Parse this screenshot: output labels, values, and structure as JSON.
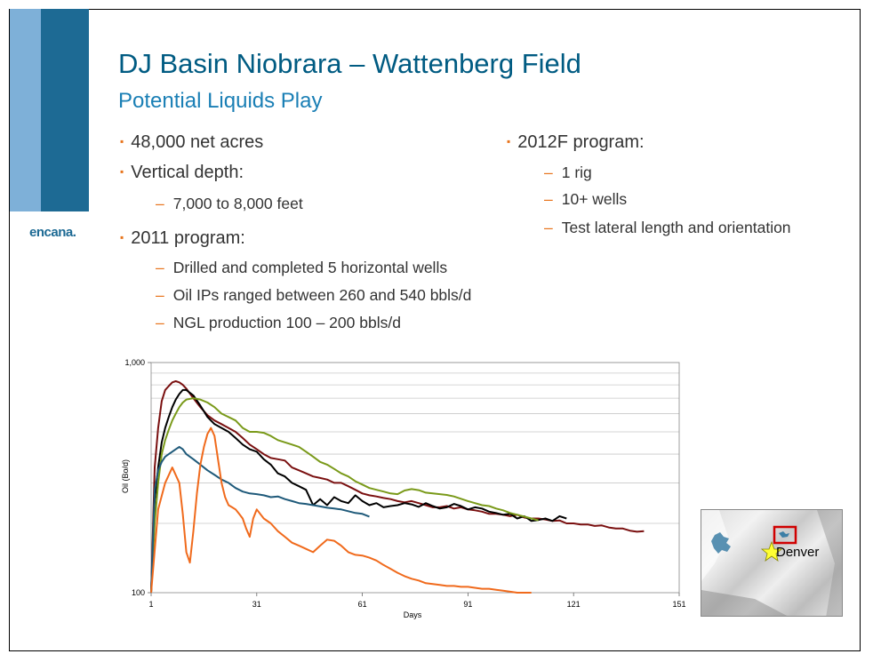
{
  "slide": {
    "title": "DJ Basin Niobrara – Wattenberg Field",
    "subtitle": "Potential Liquids Play",
    "logo": "encana.",
    "colors": {
      "title": "#005b82",
      "subtitle": "#1a7fb5",
      "bar_dark": "#1d6a94",
      "bar_light": "#7eb0d8",
      "bullet": "#e8741c"
    }
  },
  "bullets_left": [
    {
      "text": "48,000 net acres",
      "subs": []
    },
    {
      "text": "Vertical depth:",
      "subs": [
        "7,000 to 8,000 feet"
      ]
    },
    {
      "text": "2011 program:",
      "subs": [
        "Drilled and completed 5 horizontal wells",
        "Oil IPs ranged between 260 and 540 bbls/d",
        "NGL production 100 – 200 bbls/d"
      ]
    }
  ],
  "bullets_right": [
    {
      "text": "2012F program:",
      "subs": [
        "1 rig",
        "10+ wells",
        "Test lateral length and orientation"
      ]
    }
  ],
  "map": {
    "label": "Denver",
    "star_icon": "star-icon"
  },
  "chart_data": {
    "type": "line",
    "xlabel": "Days",
    "ylabel": "Oil (Bo/d)",
    "xlim": [
      1,
      151
    ],
    "ylim": [
      100,
      1000
    ],
    "yscale": "log",
    "x_ticks": [
      1,
      31,
      61,
      91,
      121,
      151
    ],
    "y_tick_labels": [
      "100",
      "1,000"
    ],
    "grid": true,
    "series": [
      {
        "color": "#7a1010",
        "x": [
          1,
          2,
          3,
          4,
          5,
          6,
          7,
          8,
          9,
          10,
          11,
          13,
          15,
          17,
          19,
          21,
          23,
          25,
          27,
          29,
          31,
          33,
          35,
          37,
          39,
          41,
          43,
          45,
          47,
          49,
          51,
          53,
          55,
          57,
          59,
          61,
          63,
          65,
          67,
          69,
          71,
          73,
          75,
          77,
          79,
          81,
          83,
          85,
          87,
          89,
          91,
          93,
          95,
          97,
          99,
          101,
          103,
          105,
          107,
          109,
          111,
          113,
          115,
          117,
          119,
          121,
          123,
          125,
          127,
          129,
          131,
          133,
          135,
          137,
          139,
          141
        ],
        "y": [
          100,
          350,
          520,
          680,
          760,
          790,
          820,
          830,
          820,
          800,
          770,
          700,
          640,
          590,
          560,
          540,
          520,
          500,
          470,
          440,
          420,
          400,
          385,
          380,
          375,
          350,
          340,
          330,
          320,
          315,
          310,
          300,
          300,
          290,
          280,
          270,
          265,
          262,
          258,
          255,
          250,
          247,
          250,
          245,
          240,
          235,
          235,
          238,
          232,
          235,
          230,
          228,
          225,
          220,
          220,
          218,
          215,
          218,
          212,
          210,
          210,
          208,
          205,
          206,
          200,
          200,
          198,
          198,
          195,
          196,
          192,
          190,
          190,
          186,
          184,
          185
        ]
      },
      {
        "color": "#000000",
        "x": [
          1,
          2,
          3,
          4,
          5,
          6,
          7,
          8,
          9,
          10,
          11,
          13,
          15,
          17,
          19,
          21,
          23,
          25,
          27,
          29,
          31,
          33,
          35,
          37,
          39,
          41,
          43,
          45,
          47,
          49,
          51,
          53,
          55,
          57,
          59,
          61,
          63,
          65,
          67,
          69,
          71,
          73,
          75,
          77,
          79,
          81,
          83,
          85,
          87,
          89,
          91,
          93,
          95,
          97,
          99,
          101,
          103,
          105,
          107,
          109,
          111,
          113,
          115,
          117,
          119
        ],
        "y": [
          100,
          250,
          350,
          450,
          520,
          580,
          640,
          690,
          730,
          760,
          760,
          720,
          650,
          580,
          540,
          520,
          500,
          470,
          440,
          420,
          410,
          380,
          360,
          330,
          320,
          300,
          290,
          280,
          240,
          255,
          240,
          260,
          250,
          245,
          265,
          250,
          240,
          245,
          235,
          238,
          240,
          245,
          242,
          236,
          245,
          238,
          232,
          235,
          243,
          238,
          230,
          235,
          232,
          225,
          222,
          218,
          220,
          210,
          215,
          205,
          207,
          210,
          205,
          215,
          210
        ]
      },
      {
        "color": "#7a9a1a",
        "x": [
          1,
          2,
          3,
          4,
          5,
          6,
          7,
          8,
          9,
          10,
          11,
          13,
          15,
          17,
          19,
          21,
          23,
          25,
          27,
          29,
          31,
          33,
          35,
          37,
          39,
          41,
          43,
          45,
          47,
          49,
          51,
          53,
          55,
          57,
          59,
          61,
          63,
          65,
          67,
          69,
          71,
          73,
          75,
          77,
          79,
          81,
          83,
          85,
          87,
          89,
          91,
          93,
          95,
          97,
          99,
          101,
          103,
          105,
          107,
          109,
          111
        ],
        "y": [
          100,
          200,
          300,
          400,
          460,
          510,
          560,
          600,
          640,
          670,
          690,
          700,
          690,
          670,
          640,
          600,
          580,
          560,
          520,
          500,
          500,
          495,
          480,
          460,
          450,
          440,
          430,
          410,
          390,
          370,
          360,
          345,
          330,
          320,
          305,
          295,
          285,
          280,
          275,
          270,
          268,
          278,
          282,
          279,
          272,
          270,
          268,
          266,
          262,
          256,
          250,
          245,
          240,
          238,
          232,
          228,
          222,
          218,
          214,
          210,
          206
        ]
      },
      {
        "color": "#1f5a7a",
        "x": [
          1,
          2,
          3,
          4,
          5,
          6,
          7,
          8,
          9,
          10,
          11,
          13,
          15,
          17,
          19,
          21,
          23,
          25,
          27,
          29,
          31,
          33,
          35,
          37,
          39,
          41,
          43,
          45,
          47,
          49,
          51,
          53,
          55,
          57,
          59,
          61,
          63
        ],
        "y": [
          100,
          280,
          340,
          370,
          390,
          400,
          410,
          420,
          430,
          420,
          400,
          380,
          360,
          340,
          325,
          310,
          300,
          285,
          275,
          270,
          268,
          265,
          260,
          262,
          255,
          250,
          245,
          243,
          240,
          237,
          234,
          232,
          230,
          226,
          222,
          220,
          214
        ]
      },
      {
        "color": "#f06a1c",
        "x": [
          1,
          3,
          5,
          7,
          9,
          10,
          11,
          12,
          13,
          14,
          15,
          16,
          17,
          18,
          19,
          20,
          21,
          22,
          23,
          24,
          25,
          26,
          27,
          28,
          29,
          30,
          31,
          33,
          35,
          37,
          39,
          41,
          43,
          45,
          47,
          49,
          51,
          53,
          55,
          57,
          59,
          61,
          63,
          65,
          67,
          69,
          71,
          73,
          75,
          77,
          79,
          81,
          83,
          85,
          87,
          89,
          91,
          93,
          95,
          97,
          99,
          101,
          103,
          105,
          107,
          109
        ],
        "y": [
          100,
          230,
          300,
          350,
          300,
          220,
          150,
          135,
          185,
          270,
          360,
          430,
          490,
          520,
          480,
          380,
          300,
          260,
          240,
          235,
          230,
          220,
          210,
          190,
          175,
          210,
          230,
          210,
          200,
          185,
          175,
          165,
          160,
          155,
          150,
          160,
          170,
          168,
          160,
          150,
          146,
          145,
          142,
          138,
          132,
          127,
          122,
          118,
          115,
          113,
          110,
          109,
          108,
          107,
          107,
          106,
          106,
          105,
          104,
          104,
          103,
          102,
          101,
          100,
          100,
          100
        ]
      }
    ]
  }
}
